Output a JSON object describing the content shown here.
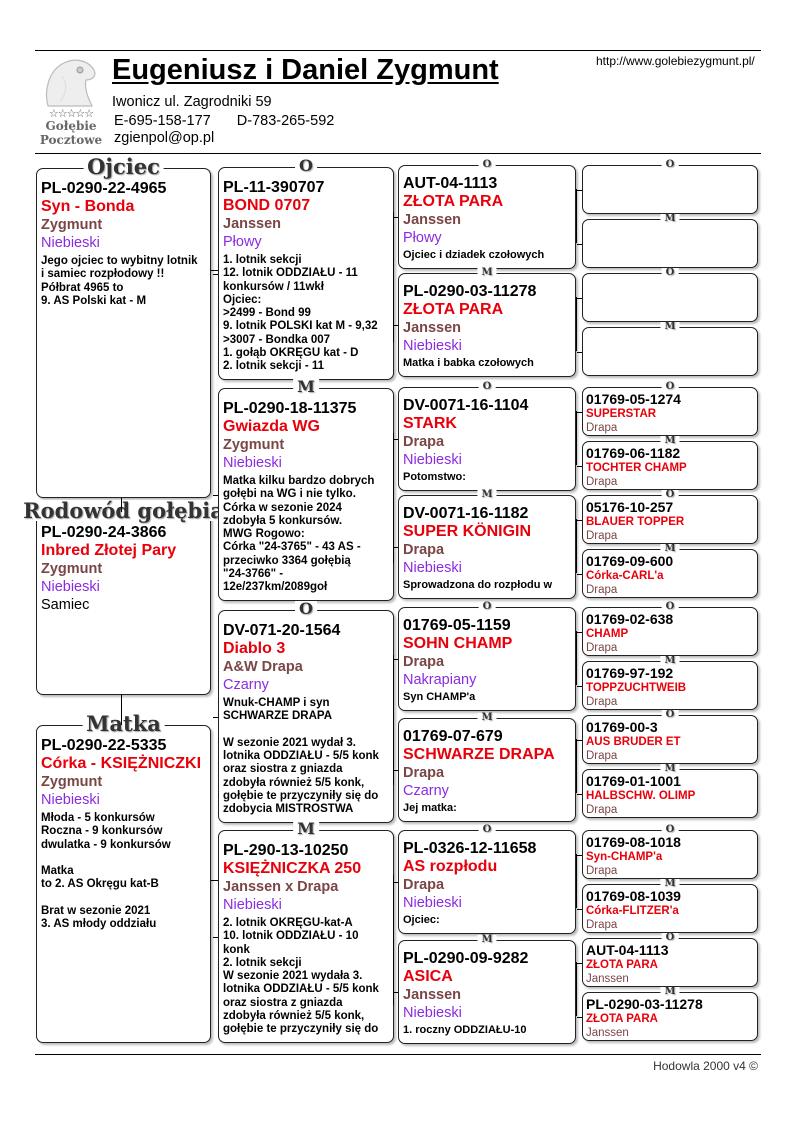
{
  "header": {
    "title": "Eugeniusz i Daniel Zygmunt",
    "url": "http://www.golebiezygmunt.pl/",
    "address": "Iwonicz ul. Zagrodniki 59",
    "phone_e": "E-695-158-177",
    "phone_d": "D-783-265-592",
    "email": "zgienpol@op.pl",
    "logo": {
      "stars": "☆☆☆☆☆",
      "line1": "Gołębie",
      "line2": "Pocztowe"
    }
  },
  "footer": "Hodowla 2000 v4 ©",
  "colors": {
    "ring": "#000000",
    "name": "#e8000b",
    "breeder": "#7a4646",
    "color": "#8a2be2"
  },
  "gen1": [
    {
      "label": "Ojciec",
      "ring": "PL-0290-22-4965",
      "name": "Syn - Bonda",
      "breeder": "Zygmunt",
      "color": "Niebieski",
      "notes": "Jego ojciec to wybitny lotnik\ni samiec rozpłodowy !!\nPółbrat 4965 to\n9. AS Polski kat - M"
    },
    {
      "label": "Rodowód gołębia",
      "ring": "PL-0290-24-3866",
      "name": "Inbred Złotej Pary",
      "breeder": "Zygmunt",
      "color": "Niebieski",
      "sex": "Samiec"
    },
    {
      "label": "Matka",
      "ring": "PL-0290-22-5335",
      "name": "Córka - KSIĘŻNICZKI",
      "breeder": "Zygmunt",
      "color": "Niebieski",
      "notes": "Młoda - 5 konkursów\nRoczna - 9 konkursów\ndwulatka - 9 konkursów\n\nMatka\nto 2. AS Okręgu kat-B\n\nBrat w sezonie 2021\n3. AS młody oddziału"
    }
  ],
  "gen2": [
    {
      "label": "O",
      "ring": "PL-11-390707",
      "name": "BOND 0707",
      "breeder": "Janssen",
      "color": "Płowy",
      "notes": "1. lotnik sekcji\n12. lotnik ODDZIAŁU - 11\nkonkursów / 11wkł\nOjciec:\n>2499 - Bond 99\n9. lotnik POLSKI kat M - 9,32\n>3007 - Bondka 007\n1. gołąb OKRĘGU kat - D\n2. lotnik sekcji - 11"
    },
    {
      "label": "M",
      "ring": "PL-0290-18-11375",
      "name": "Gwiazda WG",
      "breeder": "Zygmunt",
      "color": "Niebieski",
      "notes": "Matka kilku bardzo dobrych\ngołębi na WG i nie tylko.\nCórka w sezonie 2024\nzdobyła 5 konkursów.\nMWG Rogowo:\nCórka \"24-3765\" - 43 AS -\nprzeciwko 3364 gołębią\n\"24-3766\" -\n12e/237km/2089goł"
    },
    {
      "label": "O",
      "ring": "DV-071-20-1564",
      "name": "Diablo 3",
      "breeder": "A&W Drapa",
      "color": "Czarny",
      "notes": "Wnuk-CHAMP i syn\nSCHWARZE DRAPA\n\nW sezonie 2021 wydał 3.\nlotnika ODDZIAŁU - 5/5 konk\noraz siostra z gniazda\nzdobyła również 5/5 konk,\ngołębie te przyczyniły się do\nzdobycia MISTROSTWA"
    },
    {
      "label": "M",
      "ring": "PL-290-13-10250",
      "name": "KSIĘŻNICZKA 250",
      "breeder": "Janssen x Drapa",
      "color": "Niebieski",
      "notes": "2. lotnik OKRĘGU-kat-A\n10. lotnik ODDZIAŁU - 10\nkonk\n2. lotnik sekcji\nW sezonie 2021 wydała 3.\nlotnika ODDZIAŁU - 5/5 konk\noraz siostra z gniazda\nzdobyła również 5/5 konk,\ngołębie te przyczyniły się do"
    }
  ],
  "gen3": [
    {
      "label": "O",
      "ring": "AUT-04-1113",
      "name": "ZŁOTA PARA",
      "breeder": "Janssen",
      "color": "Płowy",
      "notes": "Ojciec i dziadek czołowych"
    },
    {
      "label": "M",
      "ring": "PL-0290-03-11278",
      "name": "ZŁOTA PARA",
      "breeder": "Janssen",
      "color": "Niebieski",
      "notes": "Matka i babka czołowych"
    },
    {
      "label": "O",
      "ring": "DV-0071-16-1104",
      "name": "STARK",
      "breeder": "Drapa",
      "color": "Niebieski",
      "notes": "Potomstwo:"
    },
    {
      "label": "M",
      "ring": "DV-0071-16-1182",
      "name": "SUPER KÖNIGIN",
      "breeder": "Drapa",
      "color": "Niebieski",
      "notes": "Sprowadzona do rozpłodu w"
    },
    {
      "label": "O",
      "ring": "01769-05-1159",
      "name": "SOHN CHAMP",
      "breeder": "Drapa",
      "color": "Nakrapiany",
      "notes": "Syn CHAMP'a"
    },
    {
      "label": "M",
      "ring": "01769-07-679",
      "name": "SCHWARZE DRAPA",
      "breeder": "Drapa",
      "color": "Czarny",
      "notes": "Jej matka:"
    },
    {
      "label": "O",
      "ring": "PL-0326-12-11658",
      "name": "AS rozpłodu",
      "breeder": "Drapa",
      "color": "Niebieski",
      "notes": "Ojciec:"
    },
    {
      "label": "M",
      "ring": "PL-0290-09-9282",
      "name": "ASICA",
      "breeder": "Janssen",
      "color": "Niebieski",
      "notes": "1. roczny ODDZIAŁU-10"
    }
  ],
  "gen4": [
    {
      "label": "O"
    },
    {
      "label": "M"
    },
    {
      "label": "O"
    },
    {
      "label": "M"
    },
    {
      "label": "O",
      "ring": "01769-05-1274",
      "name": "SUPERSTAR",
      "breeder": "Drapa"
    },
    {
      "label": "M",
      "ring": "01769-06-1182",
      "name": "TOCHTER CHAMP",
      "breeder": "Drapa"
    },
    {
      "label": "O",
      "ring": "05176-10-257",
      "name": "BLAUER TOPPER",
      "breeder": "Drapa"
    },
    {
      "label": "M",
      "ring": "01769-09-600",
      "name": "Córka-CARL'a",
      "breeder": "Drapa"
    },
    {
      "label": "O",
      "ring": "01769-02-638",
      "name": "CHAMP",
      "breeder": "Drapa"
    },
    {
      "label": "M",
      "ring": "01769-97-192",
      "name": "TOPPZUCHTWEIB",
      "breeder": "Drapa"
    },
    {
      "label": "O",
      "ring": "01769-00-3",
      "name": "AUS BRUDER ET",
      "breeder": "Drapa"
    },
    {
      "label": "M",
      "ring": "01769-01-1001",
      "name": "HALBSCHW. OLIMP",
      "breeder": "Drapa"
    },
    {
      "label": "O",
      "ring": "01769-08-1018",
      "name": "Syn-CHAMP'a",
      "breeder": "Drapa"
    },
    {
      "label": "M",
      "ring": "01769-08-1039",
      "name": "Córka-FLITZER'a",
      "breeder": "Drapa"
    },
    {
      "label": "O",
      "ring": "AUT-04-1113",
      "name": "ZŁOTA PARA",
      "breeder": "Janssen"
    },
    {
      "label": "M",
      "ring": "PL-0290-03-11278",
      "name": "ZŁOTA PARA",
      "breeder": "Janssen"
    }
  ]
}
